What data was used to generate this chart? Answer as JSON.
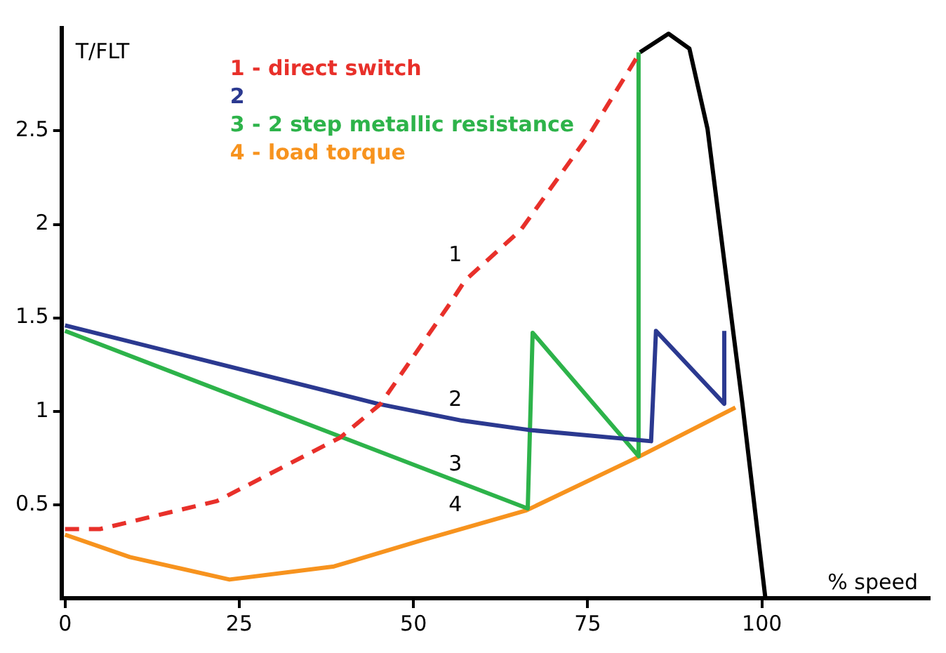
{
  "chart_data": {
    "type": "line",
    "xlabel": "% speed",
    "ylabel": "T/FLT",
    "xlim": [
      -0.5,
      124
    ],
    "ylim": [
      0,
      3.05
    ],
    "xticks": [
      0,
      25,
      50,
      75,
      100
    ],
    "yticks": [
      0.5,
      1,
      1.5,
      2,
      2.5
    ],
    "grid": false,
    "legend": "top left",
    "marker": "none",
    "series": [
      {
        "name": "1 - direct switch",
        "color": "#e8302a",
        "line_style": "dashed",
        "x": [
          0,
          5,
          21.8,
          39.5,
          45.3,
          55.3,
          57.4,
          65.4,
          75.4,
          82.5
        ],
        "values": [
          0.37,
          0.37,
          0.52,
          0.86,
          1.04,
          1.58,
          1.7,
          1.97,
          2.49,
          2.92
        ]
      },
      {
        "name": "2",
        "color": "#2b3990",
        "x": [
          0,
          44.9,
          57,
          66.6,
          84.1,
          84.8,
          94.6,
          94.6
        ],
        "values": [
          1.46,
          1.04,
          0.95,
          0.9,
          0.84,
          1.43,
          1.04,
          1.43
        ]
      },
      {
        "name": "3 - 2 step metallic resistance",
        "color": "#2db34a",
        "x": [
          0,
          66.4,
          67.1,
          82.3,
          82.3
        ],
        "values": [
          1.43,
          0.48,
          1.42,
          0.76,
          2.92
        ]
      },
      {
        "name": "4 - load torque",
        "color": "#f7931e",
        "x": [
          0,
          9.3,
          23.6,
          38.6,
          51.2,
          66.2,
          82.5,
          96.2
        ],
        "values": [
          0.34,
          0.22,
          0.1,
          0.17,
          0.31,
          0.47,
          0.76,
          1.02
        ]
      },
      {
        "color": "#000000",
        "x": [
          82.5,
          86.6,
          89.6,
          92.2,
          95.9,
          97.2,
          100.5
        ],
        "values": [
          2.92,
          3.02,
          2.94,
          2.51,
          1.42,
          1.04,
          0
        ]
      }
    ],
    "annotations": [
      "1",
      "2",
      "3",
      "4"
    ]
  }
}
